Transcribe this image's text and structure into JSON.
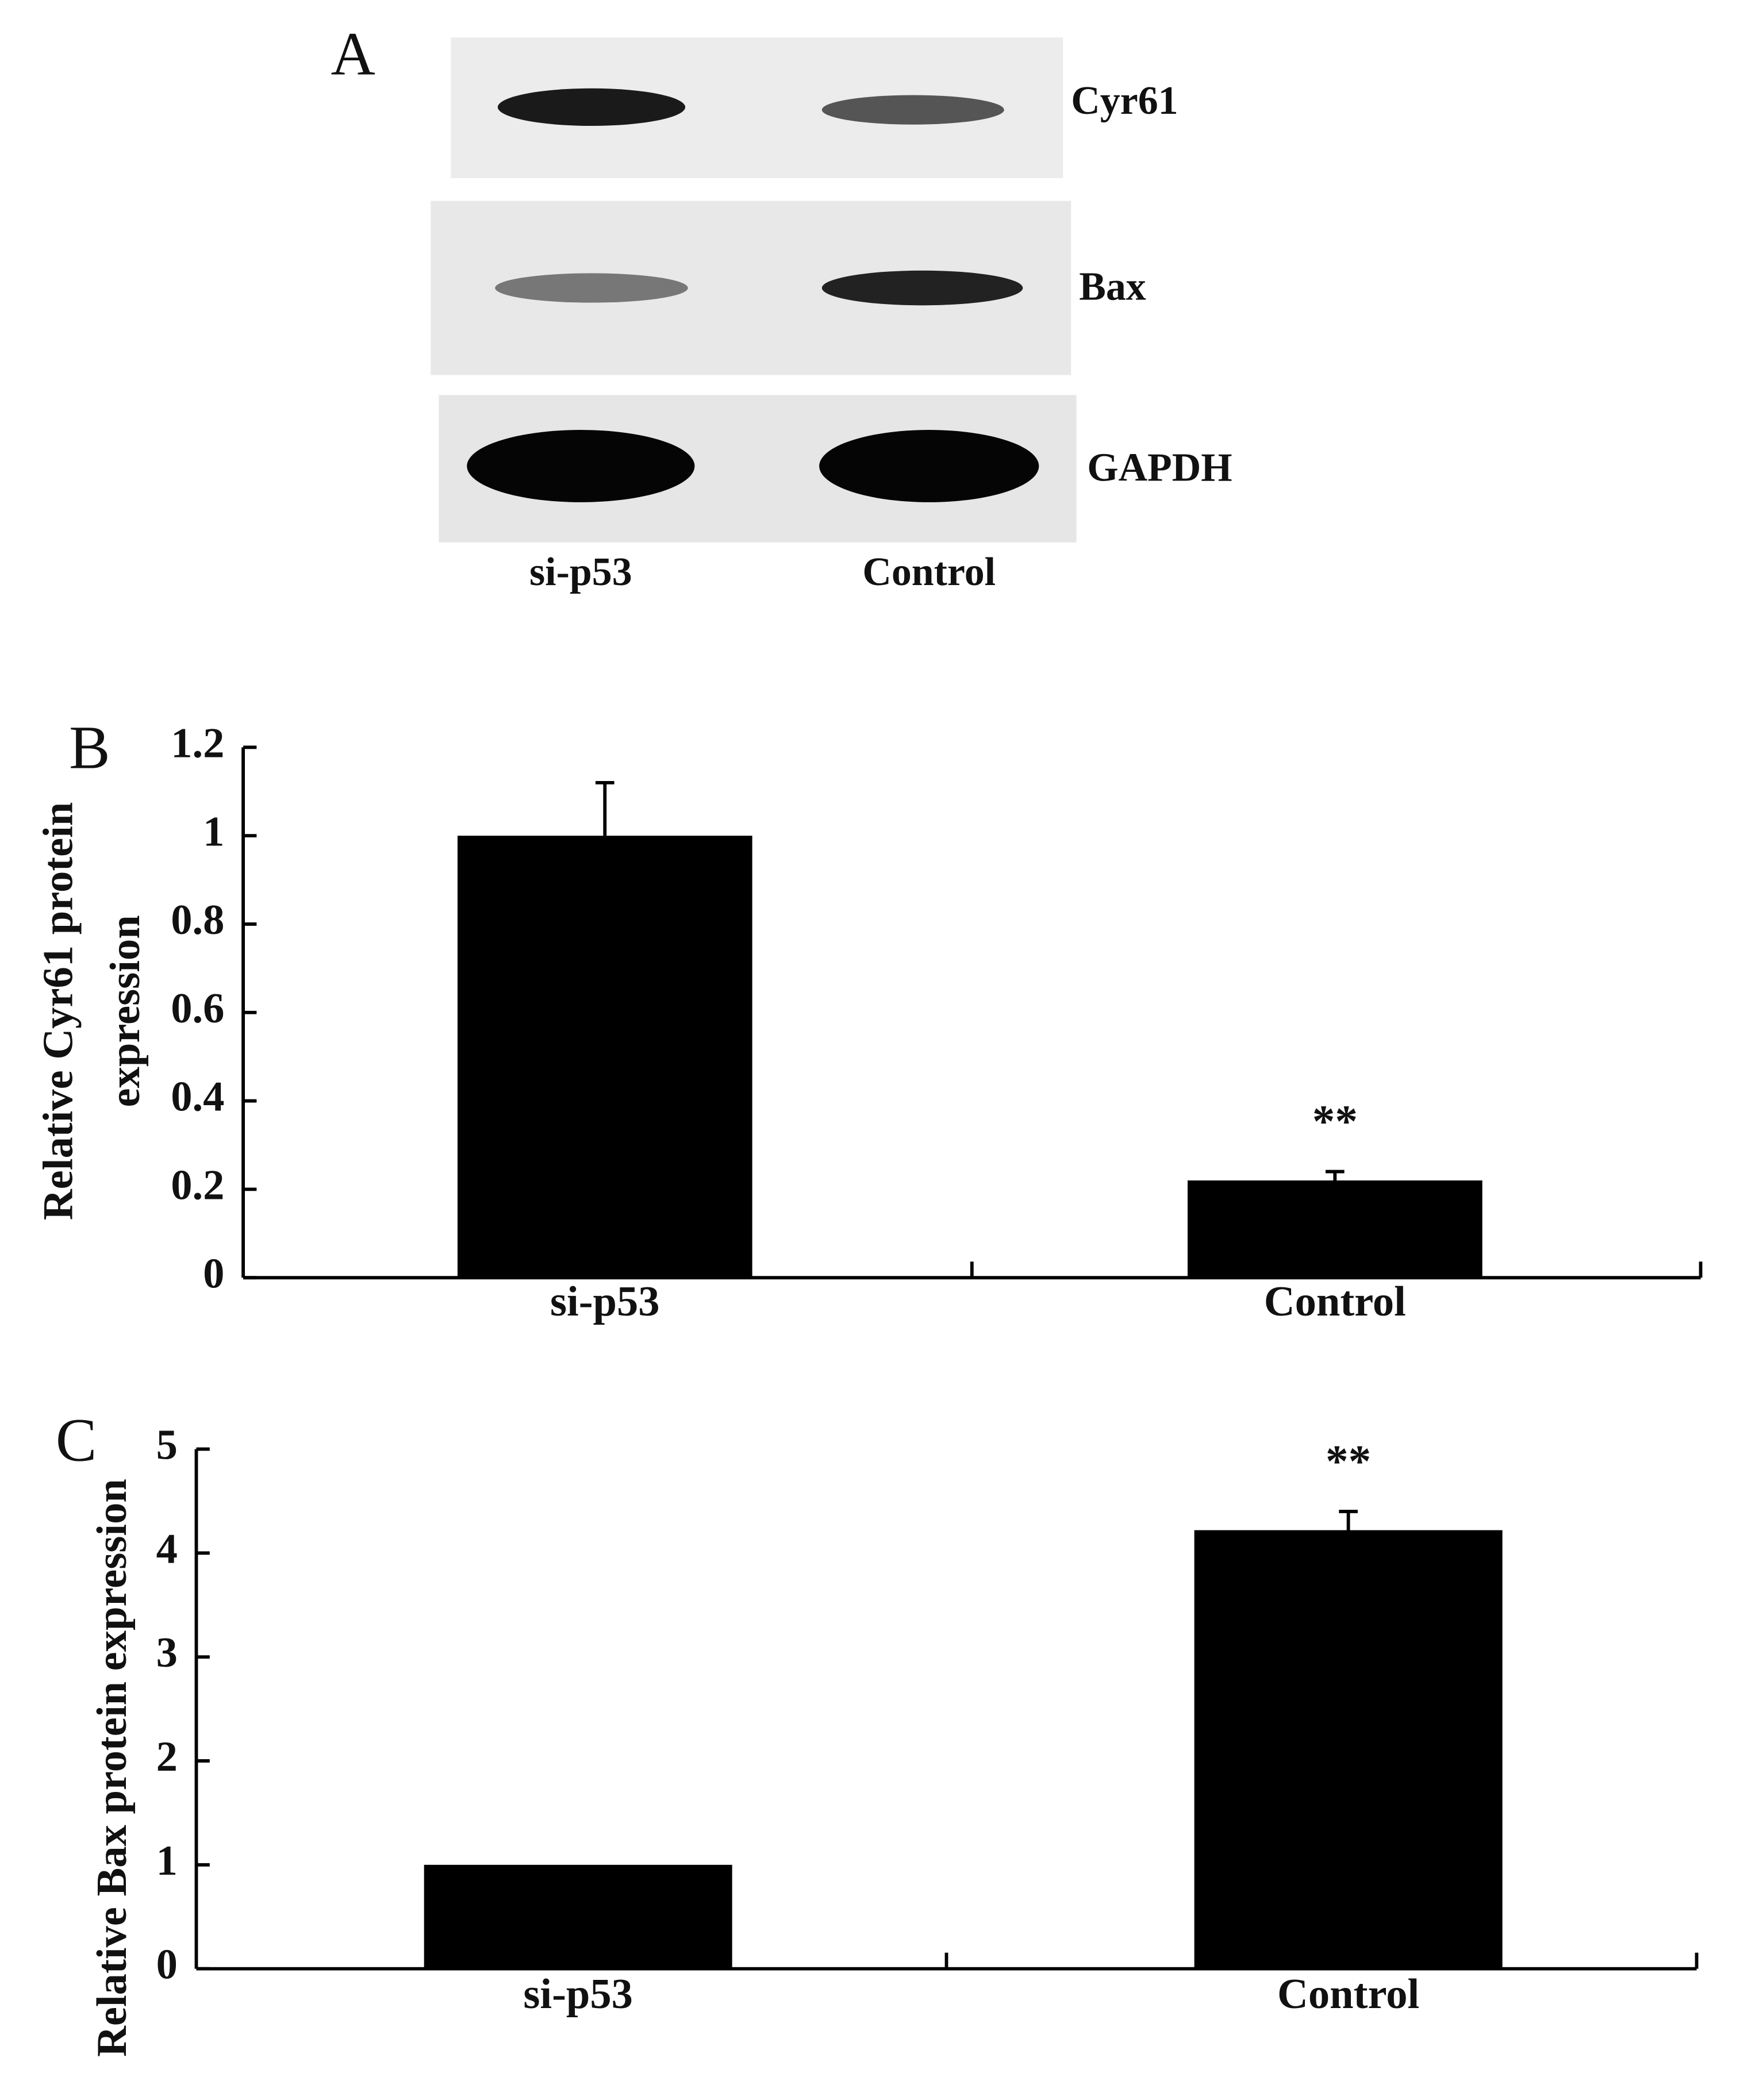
{
  "blot": {
    "panel": "A",
    "bands": [
      "Cyr61",
      "Bax",
      "GAPDH"
    ],
    "lanes": [
      "si-p53",
      "Control"
    ]
  },
  "chart_data": [
    {
      "type": "bar",
      "panel": "B",
      "ylabel": [
        "Relative Cyr61 protein",
        "expression"
      ],
      "categories": [
        "si-p53",
        "Control"
      ],
      "values": [
        1.0,
        0.22
      ],
      "errors": [
        0.12,
        0.02
      ],
      "color": "#000000",
      "annotations": [
        {
          "text": "**",
          "category": "Control"
        }
      ],
      "ylim": [
        0,
        1.2
      ],
      "yticks": [
        0,
        0.2,
        0.4,
        0.6,
        0.8,
        1,
        1.2
      ]
    },
    {
      "type": "bar",
      "panel": "C",
      "ylabel": [
        "Relative Bax protein expression"
      ],
      "categories": [
        "si-p53",
        "Control"
      ],
      "values": [
        1.0,
        4.22
      ],
      "errors": [
        0,
        0.18
      ],
      "color": "#000000",
      "annotations": [
        {
          "text": "**",
          "category": "Control"
        }
      ],
      "ylim": [
        0,
        5
      ],
      "yticks": [
        0,
        1,
        2,
        3,
        4,
        5
      ]
    }
  ]
}
